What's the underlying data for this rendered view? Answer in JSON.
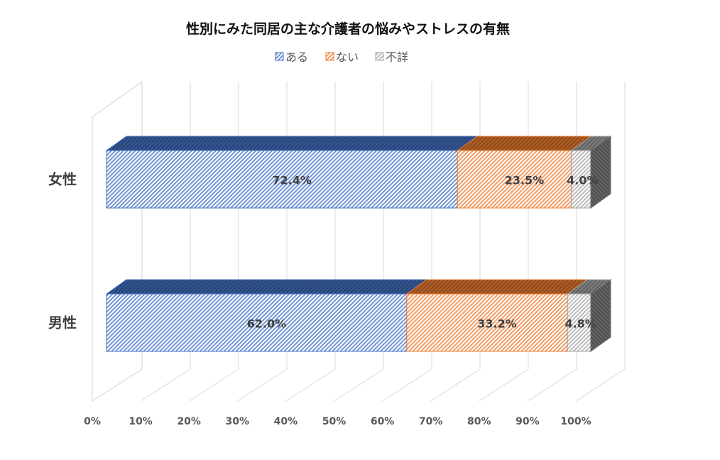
{
  "chart_data": {
    "type": "bar",
    "orientation": "horizontal",
    "stacked": "percent",
    "title": "性別にみた同居の主な介護者の悩みやストレスの有無",
    "categories": [
      "女性",
      "男性"
    ],
    "series": [
      {
        "name": "ある",
        "values": [
          72.4,
          62.0
        ],
        "labels": [
          "72.4%",
          "62.0%"
        ],
        "color": "#4472c4"
      },
      {
        "name": "ない",
        "values": [
          23.5,
          33.2
        ],
        "labels": [
          "23.5%",
          "33.2%"
        ],
        "color": "#ed7d31"
      },
      {
        "name": "不詳",
        "values": [
          4.0,
          4.8
        ],
        "labels": [
          "4.0%",
          "4.8%"
        ],
        "color": "#a5a5a5"
      }
    ],
    "xlim": [
      0,
      100
    ],
    "xticks": [
      "0%",
      "10%",
      "20%",
      "30%",
      "40%",
      "50%",
      "60%",
      "70%",
      "80%",
      "90%",
      "100%"
    ],
    "legend": "top",
    "grid": true
  }
}
